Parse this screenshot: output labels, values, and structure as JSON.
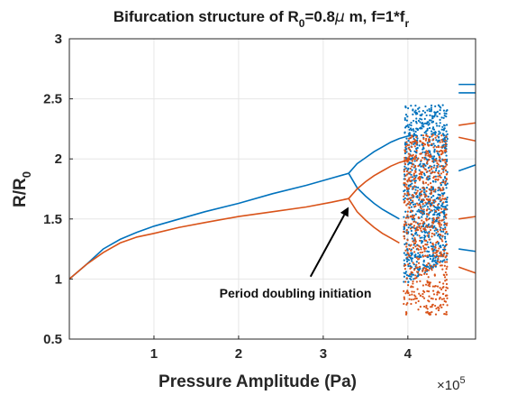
{
  "chart_data": {
    "type": "scatter",
    "title": {
      "main": "Bifurcation structure  of R",
      "sub": "0",
      "rest_before_mu": "=0.8",
      "mu": "μ",
      "rest_after_mu": " m, f=1*f",
      "sub2": "r"
    },
    "xlabel": "Pressure Amplitude (Pa)",
    "ylabel": {
      "main": "R/R",
      "sub": "0"
    },
    "x_exponent": {
      "base": "×10",
      "power": "5"
    },
    "xlim": [
      0,
      4.8
    ],
    "ylim": [
      0.5,
      3
    ],
    "xticks": [
      1,
      2,
      3,
      4
    ],
    "yticks": [
      0.5,
      1,
      1.5,
      2,
      2.5,
      3
    ],
    "xtick_labels": [
      "1",
      "2",
      "3",
      "4"
    ],
    "ytick_labels": [
      "0.5",
      "1",
      "1.5",
      "2",
      "2.5",
      "3"
    ],
    "grid": true,
    "annotation": {
      "text": "Period doubling initiation",
      "arrow_from": [
        2.85,
        1.02
      ],
      "arrow_to": [
        3.3,
        1.6
      ]
    },
    "series": [
      {
        "color": "#0072BD",
        "branches": [
          {
            "x": [
              0.0,
              0.2,
              0.4,
              0.6,
              0.8,
              1.0,
              1.3,
              1.6,
              2.0,
              2.4,
              2.8,
              3.1,
              3.3
            ],
            "y": [
              1.0,
              1.12,
              1.25,
              1.33,
              1.39,
              1.44,
              1.5,
              1.56,
              1.63,
              1.71,
              1.78,
              1.84,
              1.88
            ]
          },
          {
            "x": [
              3.3,
              3.4,
              3.5,
              3.6,
              3.7,
              3.8,
              3.9,
              4.0,
              4.1
            ],
            "y": [
              1.88,
              1.96,
              2.01,
              2.06,
              2.1,
              2.14,
              2.17,
              2.19,
              2.2
            ]
          },
          {
            "x": [
              3.3,
              3.4,
              3.5,
              3.6,
              3.7,
              3.8,
              3.9
            ],
            "y": [
              1.88,
              1.76,
              1.69,
              1.63,
              1.58,
              1.54,
              1.5
            ]
          }
        ]
      },
      {
        "color": "#D95319",
        "branches": [
          {
            "x": [
              0.0,
              0.2,
              0.4,
              0.6,
              0.8,
              1.0,
              1.3,
              1.6,
              2.0,
              2.4,
              2.8,
              3.1,
              3.3
            ],
            "y": [
              1.0,
              1.12,
              1.22,
              1.3,
              1.35,
              1.38,
              1.43,
              1.47,
              1.52,
              1.56,
              1.6,
              1.64,
              1.67
            ]
          },
          {
            "x": [
              3.3,
              3.4,
              3.5,
              3.6,
              3.7,
              3.8,
              3.9,
              4.0,
              4.1
            ],
            "y": [
              1.67,
              1.75,
              1.81,
              1.86,
              1.9,
              1.94,
              1.97,
              1.99,
              2.0
            ]
          },
          {
            "x": [
              3.3,
              3.4,
              3.5,
              3.6,
              3.7,
              3.8,
              3.9
            ],
            "y": [
              1.67,
              1.56,
              1.49,
              1.43,
              1.38,
              1.34,
              1.3
            ]
          }
        ]
      }
    ]
  }
}
